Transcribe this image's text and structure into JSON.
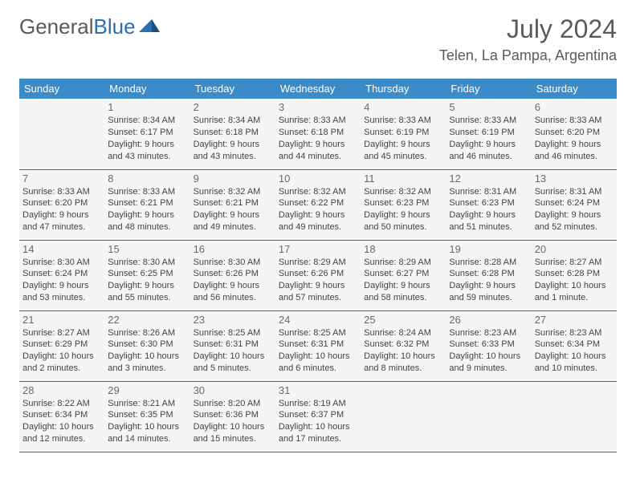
{
  "logo": {
    "text1": "General",
    "text2": "Blue"
  },
  "title": "July 2024",
  "location": "Telen, La Pampa, Argentina",
  "colors": {
    "header_bg": "#3b8bc9",
    "header_fg": "#ffffff",
    "cell_bg": "#f5f5f5",
    "border": "#3b6a95",
    "logo_gray": "#5a5a5a",
    "logo_blue": "#2b6fb0"
  },
  "weekdays": [
    "Sunday",
    "Monday",
    "Tuesday",
    "Wednesday",
    "Thursday",
    "Friday",
    "Saturday"
  ],
  "weeks": [
    [
      null,
      {
        "d": "1",
        "sr": "Sunrise: 8:34 AM",
        "ss": "Sunset: 6:17 PM",
        "dl1": "Daylight: 9 hours",
        "dl2": "and 43 minutes."
      },
      {
        "d": "2",
        "sr": "Sunrise: 8:34 AM",
        "ss": "Sunset: 6:18 PM",
        "dl1": "Daylight: 9 hours",
        "dl2": "and 43 minutes."
      },
      {
        "d": "3",
        "sr": "Sunrise: 8:33 AM",
        "ss": "Sunset: 6:18 PM",
        "dl1": "Daylight: 9 hours",
        "dl2": "and 44 minutes."
      },
      {
        "d": "4",
        "sr": "Sunrise: 8:33 AM",
        "ss": "Sunset: 6:19 PM",
        "dl1": "Daylight: 9 hours",
        "dl2": "and 45 minutes."
      },
      {
        "d": "5",
        "sr": "Sunrise: 8:33 AM",
        "ss": "Sunset: 6:19 PM",
        "dl1": "Daylight: 9 hours",
        "dl2": "and 46 minutes."
      },
      {
        "d": "6",
        "sr": "Sunrise: 8:33 AM",
        "ss": "Sunset: 6:20 PM",
        "dl1": "Daylight: 9 hours",
        "dl2": "and 46 minutes."
      }
    ],
    [
      {
        "d": "7",
        "sr": "Sunrise: 8:33 AM",
        "ss": "Sunset: 6:20 PM",
        "dl1": "Daylight: 9 hours",
        "dl2": "and 47 minutes."
      },
      {
        "d": "8",
        "sr": "Sunrise: 8:33 AM",
        "ss": "Sunset: 6:21 PM",
        "dl1": "Daylight: 9 hours",
        "dl2": "and 48 minutes."
      },
      {
        "d": "9",
        "sr": "Sunrise: 8:32 AM",
        "ss": "Sunset: 6:21 PM",
        "dl1": "Daylight: 9 hours",
        "dl2": "and 49 minutes."
      },
      {
        "d": "10",
        "sr": "Sunrise: 8:32 AM",
        "ss": "Sunset: 6:22 PM",
        "dl1": "Daylight: 9 hours",
        "dl2": "and 49 minutes."
      },
      {
        "d": "11",
        "sr": "Sunrise: 8:32 AM",
        "ss": "Sunset: 6:23 PM",
        "dl1": "Daylight: 9 hours",
        "dl2": "and 50 minutes."
      },
      {
        "d": "12",
        "sr": "Sunrise: 8:31 AM",
        "ss": "Sunset: 6:23 PM",
        "dl1": "Daylight: 9 hours",
        "dl2": "and 51 minutes."
      },
      {
        "d": "13",
        "sr": "Sunrise: 8:31 AM",
        "ss": "Sunset: 6:24 PM",
        "dl1": "Daylight: 9 hours",
        "dl2": "and 52 minutes."
      }
    ],
    [
      {
        "d": "14",
        "sr": "Sunrise: 8:30 AM",
        "ss": "Sunset: 6:24 PM",
        "dl1": "Daylight: 9 hours",
        "dl2": "and 53 minutes."
      },
      {
        "d": "15",
        "sr": "Sunrise: 8:30 AM",
        "ss": "Sunset: 6:25 PM",
        "dl1": "Daylight: 9 hours",
        "dl2": "and 55 minutes."
      },
      {
        "d": "16",
        "sr": "Sunrise: 8:30 AM",
        "ss": "Sunset: 6:26 PM",
        "dl1": "Daylight: 9 hours",
        "dl2": "and 56 minutes."
      },
      {
        "d": "17",
        "sr": "Sunrise: 8:29 AM",
        "ss": "Sunset: 6:26 PM",
        "dl1": "Daylight: 9 hours",
        "dl2": "and 57 minutes."
      },
      {
        "d": "18",
        "sr": "Sunrise: 8:29 AM",
        "ss": "Sunset: 6:27 PM",
        "dl1": "Daylight: 9 hours",
        "dl2": "and 58 minutes."
      },
      {
        "d": "19",
        "sr": "Sunrise: 8:28 AM",
        "ss": "Sunset: 6:28 PM",
        "dl1": "Daylight: 9 hours",
        "dl2": "and 59 minutes."
      },
      {
        "d": "20",
        "sr": "Sunrise: 8:27 AM",
        "ss": "Sunset: 6:28 PM",
        "dl1": "Daylight: 10 hours",
        "dl2": "and 1 minute."
      }
    ],
    [
      {
        "d": "21",
        "sr": "Sunrise: 8:27 AM",
        "ss": "Sunset: 6:29 PM",
        "dl1": "Daylight: 10 hours",
        "dl2": "and 2 minutes."
      },
      {
        "d": "22",
        "sr": "Sunrise: 8:26 AM",
        "ss": "Sunset: 6:30 PM",
        "dl1": "Daylight: 10 hours",
        "dl2": "and 3 minutes."
      },
      {
        "d": "23",
        "sr": "Sunrise: 8:25 AM",
        "ss": "Sunset: 6:31 PM",
        "dl1": "Daylight: 10 hours",
        "dl2": "and 5 minutes."
      },
      {
        "d": "24",
        "sr": "Sunrise: 8:25 AM",
        "ss": "Sunset: 6:31 PM",
        "dl1": "Daylight: 10 hours",
        "dl2": "and 6 minutes."
      },
      {
        "d": "25",
        "sr": "Sunrise: 8:24 AM",
        "ss": "Sunset: 6:32 PM",
        "dl1": "Daylight: 10 hours",
        "dl2": "and 8 minutes."
      },
      {
        "d": "26",
        "sr": "Sunrise: 8:23 AM",
        "ss": "Sunset: 6:33 PM",
        "dl1": "Daylight: 10 hours",
        "dl2": "and 9 minutes."
      },
      {
        "d": "27",
        "sr": "Sunrise: 8:23 AM",
        "ss": "Sunset: 6:34 PM",
        "dl1": "Daylight: 10 hours",
        "dl2": "and 10 minutes."
      }
    ],
    [
      {
        "d": "28",
        "sr": "Sunrise: 8:22 AM",
        "ss": "Sunset: 6:34 PM",
        "dl1": "Daylight: 10 hours",
        "dl2": "and 12 minutes."
      },
      {
        "d": "29",
        "sr": "Sunrise: 8:21 AM",
        "ss": "Sunset: 6:35 PM",
        "dl1": "Daylight: 10 hours",
        "dl2": "and 14 minutes."
      },
      {
        "d": "30",
        "sr": "Sunrise: 8:20 AM",
        "ss": "Sunset: 6:36 PM",
        "dl1": "Daylight: 10 hours",
        "dl2": "and 15 minutes."
      },
      {
        "d": "31",
        "sr": "Sunrise: 8:19 AM",
        "ss": "Sunset: 6:37 PM",
        "dl1": "Daylight: 10 hours",
        "dl2": "and 17 minutes."
      },
      null,
      null,
      null
    ]
  ]
}
